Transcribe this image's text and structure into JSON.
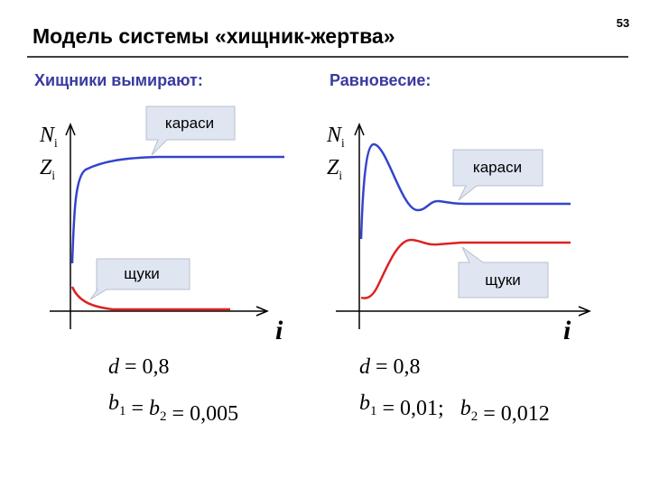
{
  "page_number": "53",
  "title": "Модель системы «хищник-жертва»",
  "panels": [
    {
      "heading": "Хищники вымирают:",
      "y_labels": [
        {
          "main": "N",
          "sub": "i"
        },
        {
          "main": "Z",
          "sub": "i"
        }
      ],
      "x_label": "i",
      "callouts": {
        "prey": "караси",
        "predator": "щуки"
      },
      "formulas": [
        [
          {
            "main": "d"
          },
          " = 0,8"
        ],
        [
          {
            "main": "b",
            "sub": "1"
          },
          " = ",
          {
            "main": "b",
            "sub": "2"
          },
          " = 0,005"
        ]
      ]
    },
    {
      "heading": "Равновесие:",
      "y_labels": [
        {
          "main": "N",
          "sub": "i"
        },
        {
          "main": "Z",
          "sub": "i"
        }
      ],
      "x_label": "i",
      "callouts": {
        "prey": "караси",
        "predator": "щуки"
      },
      "formulas": [
        [
          {
            "main": "d"
          },
          " = 0,8"
        ],
        [
          {
            "main": "b",
            "sub": "1"
          },
          " = 0,01;   ",
          {
            "main": "b",
            "sub": "2"
          },
          " = 0,012"
        ]
      ]
    }
  ]
}
